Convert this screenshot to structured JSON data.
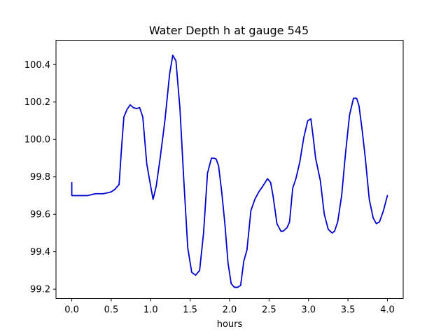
{
  "chart_data": {
    "type": "line",
    "title": "Water Depth h at gauge 545",
    "xlabel": "hours",
    "ylabel": "",
    "xlim": [
      -0.2,
      4.2
    ],
    "ylim": [
      99.15,
      100.53
    ],
    "xticks": [
      0.0,
      0.5,
      1.0,
      1.5,
      2.0,
      2.5,
      3.0,
      3.5,
      4.0
    ],
    "xtick_labels": [
      "0.0",
      "0.5",
      "1.0",
      "1.5",
      "2.0",
      "2.5",
      "3.0",
      "3.5",
      "4.0"
    ],
    "yticks": [
      99.2,
      99.4,
      99.6,
      99.8,
      100.0,
      100.2,
      100.4
    ],
    "ytick_labels": [
      "99.2",
      "99.4",
      "99.6",
      "99.8",
      "100.0",
      "100.2",
      "100.4"
    ],
    "grid": false,
    "series": [
      {
        "color": "#0000cc",
        "x": [
          0.0,
          0.0,
          0.1,
          0.2,
          0.3,
          0.4,
          0.5,
          0.55,
          0.6,
          0.63,
          0.66,
          0.7,
          0.74,
          0.78,
          0.82,
          0.86,
          0.9,
          0.95,
          1.0,
          1.03,
          1.07,
          1.12,
          1.18,
          1.24,
          1.28,
          1.32,
          1.37,
          1.42,
          1.47,
          1.52,
          1.57,
          1.62,
          1.67,
          1.72,
          1.77,
          1.8,
          1.83,
          1.86,
          1.9,
          1.94,
          1.98,
          2.02,
          2.06,
          2.1,
          2.14,
          2.18,
          2.22,
          2.27,
          2.32,
          2.37,
          2.42,
          2.48,
          2.52,
          2.55,
          2.6,
          2.65,
          2.68,
          2.73,
          2.76,
          2.8,
          2.84,
          2.89,
          2.94,
          2.99,
          3.03,
          3.06,
          3.09,
          3.15,
          3.2,
          3.25,
          3.3,
          3.33,
          3.37,
          3.42,
          3.47,
          3.52,
          3.57,
          3.61,
          3.64,
          3.68,
          3.72,
          3.77,
          3.82,
          3.86,
          3.9,
          3.95,
          4.0
        ],
        "y": [
          99.77,
          99.7,
          99.7,
          99.7,
          99.71,
          99.71,
          99.72,
          99.735,
          99.76,
          99.95,
          100.12,
          100.16,
          100.185,
          100.17,
          100.165,
          100.17,
          100.12,
          99.87,
          99.75,
          99.68,
          99.75,
          99.9,
          100.1,
          100.35,
          100.45,
          100.42,
          100.17,
          99.78,
          99.42,
          99.29,
          99.275,
          99.3,
          99.5,
          99.82,
          99.9,
          99.9,
          99.895,
          99.86,
          99.72,
          99.55,
          99.34,
          99.23,
          99.21,
          99.21,
          99.22,
          99.35,
          99.41,
          99.62,
          99.68,
          99.72,
          99.75,
          99.79,
          99.77,
          99.7,
          99.55,
          99.51,
          99.51,
          99.53,
          99.56,
          99.74,
          99.79,
          99.88,
          100.01,
          100.1,
          100.11,
          100.01,
          99.9,
          99.78,
          99.6,
          99.52,
          99.5,
          99.51,
          99.56,
          99.7,
          99.93,
          100.13,
          100.22,
          100.22,
          100.18,
          100.05,
          99.9,
          99.68,
          99.58,
          99.55,
          99.56,
          99.62,
          99.7
        ]
      }
    ]
  }
}
